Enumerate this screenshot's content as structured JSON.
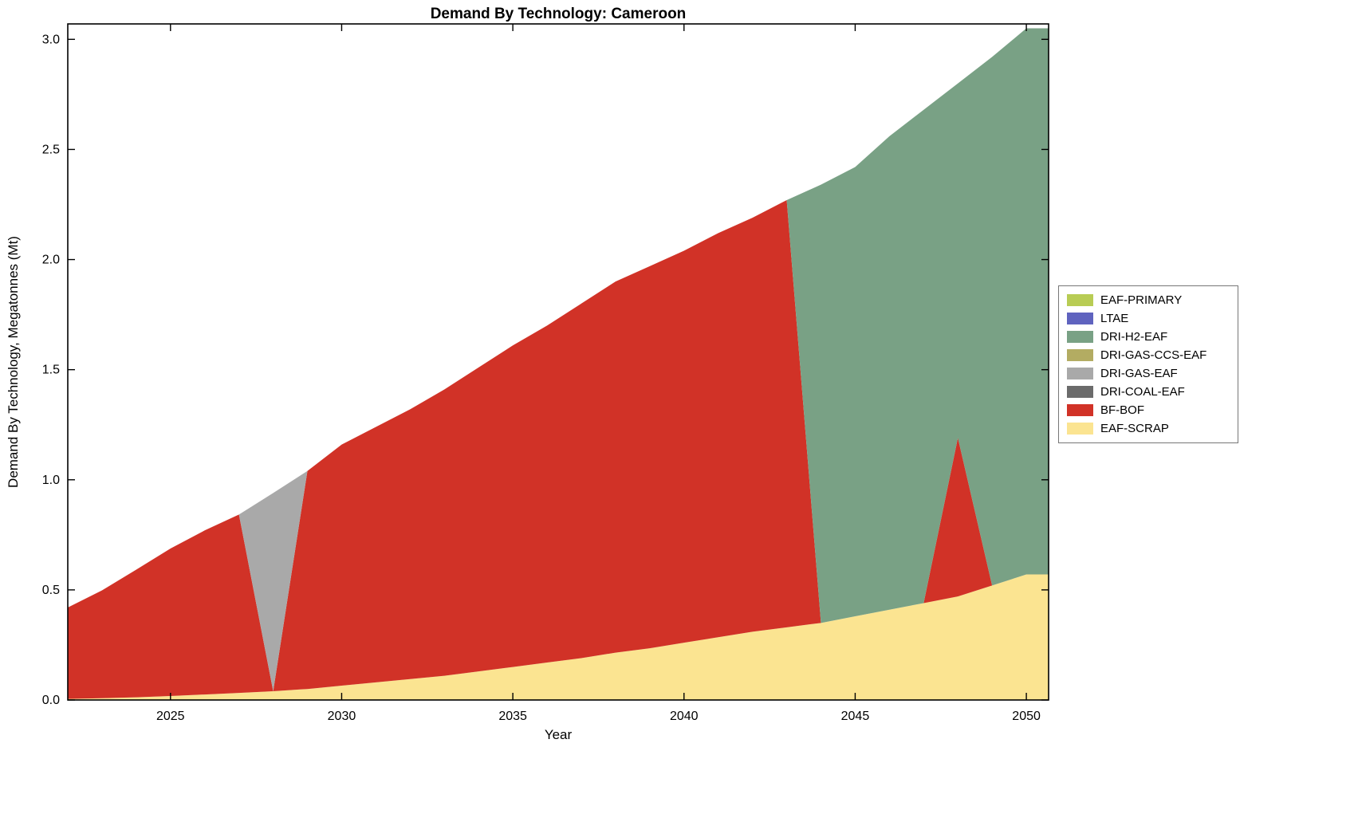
{
  "title": "Demand By Technology: Cameroon",
  "axes": {
    "xlabel": "Year",
    "ylabel": "Demand By Technology, Megatonnes (Mt)"
  },
  "chart_data": {
    "type": "area",
    "stacked": true,
    "title": "Demand By Technology: Cameroon",
    "xlabel": "Year",
    "ylabel": "Demand By Technology, Megatonnes (Mt)",
    "xlim": [
      2022,
      2050.65
    ],
    "ylim": [
      0,
      3.07
    ],
    "grid": false,
    "xticks": [
      2025,
      2030,
      2035,
      2040,
      2045,
      2050
    ],
    "yticks": [
      0,
      0.5,
      1.0,
      1.5,
      2.0,
      2.5,
      3.0
    ],
    "ytick_labels": [
      "0.0",
      "0.5",
      "1.0",
      "1.5",
      "2.0",
      "2.5",
      "3.0"
    ],
    "x": [
      2022,
      2023,
      2024,
      2025,
      2026,
      2027,
      2028,
      2029,
      2030,
      2031,
      2032,
      2033,
      2034,
      2035,
      2036,
      2037,
      2038,
      2039,
      2040,
      2041,
      2042,
      2043,
      2044,
      2045,
      2046,
      2047,
      2048,
      2049,
      2050
    ],
    "series": [
      {
        "name": "EAF-SCRAP",
        "color": "#fbe491",
        "values": [
          0.005,
          0.008,
          0.012,
          0.018,
          0.025,
          0.032,
          0.04,
          0.05,
          0.065,
          0.08,
          0.095,
          0.11,
          0.13,
          0.15,
          0.17,
          0.19,
          0.215,
          0.235,
          0.26,
          0.285,
          0.31,
          0.33,
          0.35,
          0.38,
          0.41,
          0.44,
          0.47,
          0.52,
          0.57
        ]
      },
      {
        "name": "BF-BOF",
        "color": "#d13227",
        "values": [
          0.415,
          0.49,
          0.58,
          0.67,
          0.745,
          0.81,
          0,
          0.99,
          1.095,
          1.16,
          1.225,
          1.3,
          1.38,
          1.46,
          1.53,
          1.61,
          1.685,
          1.735,
          1.78,
          1.835,
          1.88,
          1.94,
          0,
          0,
          0,
          0,
          0.72,
          0,
          0
        ]
      },
      {
        "name": "DRI-COAL-EAF",
        "color": "#6b6b6b",
        "values": [
          0,
          0,
          0,
          0,
          0,
          0,
          0,
          0,
          0,
          0,
          0,
          0,
          0,
          0,
          0,
          0,
          0,
          0,
          0,
          0,
          0,
          0,
          0,
          0,
          0,
          0,
          0,
          0,
          0
        ]
      },
      {
        "name": "DRI-GAS-EAF",
        "color": "#a9a9a9",
        "values": [
          0,
          0,
          0,
          0,
          0,
          0,
          0.9,
          0,
          0,
          0,
          0,
          0,
          0,
          0,
          0,
          0,
          0,
          0,
          0,
          0,
          0,
          0,
          0,
          0,
          0,
          0,
          0,
          0,
          0
        ]
      },
      {
        "name": "DRI-GAS-CCS-EAF",
        "color": "#b3ac62",
        "values": [
          0,
          0,
          0,
          0,
          0,
          0,
          0,
          0,
          0,
          0,
          0,
          0,
          0,
          0,
          0,
          0,
          0,
          0,
          0,
          0,
          0,
          0,
          0,
          0,
          0,
          0,
          0,
          0,
          0
        ]
      },
      {
        "name": "DRI-H2-EAF",
        "color": "#79a185",
        "values": [
          0,
          0,
          0,
          0,
          0,
          0,
          0,
          0,
          0,
          0,
          0,
          0,
          0,
          0,
          0,
          0,
          0,
          0,
          0,
          0,
          0,
          0,
          1.99,
          2.04,
          2.15,
          2.24,
          1.61,
          2.4,
          2.48
        ]
      },
      {
        "name": "LTAE",
        "color": "#5f63bf",
        "values": [
          0,
          0,
          0,
          0,
          0,
          0,
          0,
          0,
          0,
          0,
          0,
          0,
          0,
          0,
          0,
          0,
          0,
          0,
          0,
          0,
          0,
          0,
          0,
          0,
          0,
          0,
          0,
          0,
          0
        ]
      },
      {
        "name": "EAF-PRIMARY",
        "color": "#b8cc54",
        "values": [
          0,
          0,
          0,
          0,
          0,
          0,
          0,
          0,
          0,
          0,
          0,
          0,
          0,
          0,
          0,
          0,
          0,
          0,
          0,
          0,
          0,
          0,
          0,
          0,
          0,
          0,
          0,
          0,
          0
        ]
      }
    ],
    "legend": {
      "position": "right-outside",
      "entries": [
        {
          "label": "EAF-PRIMARY",
          "color": "#b8cc54"
        },
        {
          "label": "LTAE",
          "color": "#5f63bf"
        },
        {
          "label": "DRI-H2-EAF",
          "color": "#79a185"
        },
        {
          "label": "DRI-GAS-CCS-EAF",
          "color": "#b3ac62"
        },
        {
          "label": "DRI-GAS-EAF",
          "color": "#a9a9a9"
        },
        {
          "label": "DRI-COAL-EAF",
          "color": "#6b6b6b"
        },
        {
          "label": "BF-BOF",
          "color": "#d13227"
        },
        {
          "label": "EAF-SCRAP",
          "color": "#fbe491"
        }
      ]
    }
  }
}
